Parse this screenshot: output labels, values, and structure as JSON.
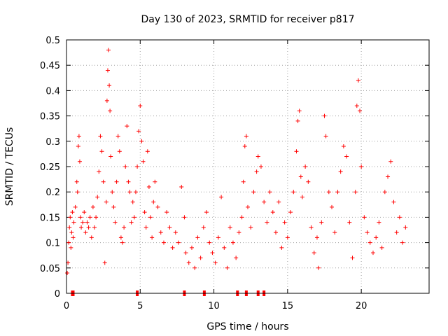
{
  "chart_data": {
    "type": "scatter",
    "title": "Day 130 of 2023, SRMTID for receiver p817",
    "xlabel": "GPS time / hours",
    "ylabel": "SRMTID / TECUs",
    "xlim": [
      0,
      24.6
    ],
    "ylim": [
      0,
      0.5
    ],
    "x_ticks": [
      0,
      5,
      10,
      15,
      20
    ],
    "x_tick_labels": [
      "0",
      "5",
      "10",
      "15",
      "20"
    ],
    "y_ticks": [
      0,
      0.05,
      0.1,
      0.15,
      0.2,
      0.25,
      0.3,
      0.35,
      0.4,
      0.45,
      0.5
    ],
    "y_tick_labels": [
      "0",
      "0.05",
      "0.1",
      "0.15",
      "0.2",
      "0.25",
      "0.3",
      "0.35",
      "0.4",
      "0.45",
      "0.5"
    ],
    "grid": true,
    "marker": "+",
    "color": "#ff0000",
    "series": [
      {
        "name": "SRMTID",
        "points": [
          [
            0.05,
            0.04
          ],
          [
            0.1,
            0.06
          ],
          [
            0.15,
            0.1
          ],
          [
            0.2,
            0.13
          ],
          [
            0.25,
            0.15
          ],
          [
            0.3,
            0.09
          ],
          [
            0.35,
            0.12
          ],
          [
            0.4,
            0.16
          ],
          [
            0.45,
            0.11
          ],
          [
            0.5,
            0.14
          ],
          [
            0.6,
            0.17
          ],
          [
            0.7,
            0.22
          ],
          [
            0.75,
            0.2
          ],
          [
            0.8,
            0.29
          ],
          [
            0.85,
            0.31
          ],
          [
            0.9,
            0.26
          ],
          [
            0.95,
            0.15
          ],
          [
            1.0,
            0.13
          ],
          [
            1.1,
            0.14
          ],
          [
            1.2,
            0.16
          ],
          [
            1.3,
            0.12
          ],
          [
            1.4,
            0.14
          ],
          [
            1.5,
            0.13
          ],
          [
            1.6,
            0.15
          ],
          [
            1.7,
            0.11
          ],
          [
            1.8,
            0.17
          ],
          [
            1.9,
            0.13
          ],
          [
            2.0,
            0.15
          ],
          [
            2.1,
            0.19
          ],
          [
            2.2,
            0.24
          ],
          [
            2.3,
            0.31
          ],
          [
            2.4,
            0.28
          ],
          [
            2.5,
            0.22
          ],
          [
            2.6,
            0.06
          ],
          [
            2.7,
            0.18
          ],
          [
            2.75,
            0.38
          ],
          [
            2.8,
            0.44
          ],
          [
            2.85,
            0.48
          ],
          [
            2.9,
            0.41
          ],
          [
            2.95,
            0.36
          ],
          [
            3.0,
            0.27
          ],
          [
            3.1,
            0.2
          ],
          [
            3.2,
            0.17
          ],
          [
            3.3,
            0.14
          ],
          [
            3.4,
            0.22
          ],
          [
            3.5,
            0.31
          ],
          [
            3.6,
            0.28
          ],
          [
            3.7,
            0.11
          ],
          [
            3.8,
            0.1
          ],
          [
            3.9,
            0.13
          ],
          [
            4.0,
            0.25
          ],
          [
            4.1,
            0.33
          ],
          [
            4.2,
            0.22
          ],
          [
            4.3,
            0.2
          ],
          [
            4.4,
            0.14
          ],
          [
            4.5,
            0.18
          ],
          [
            4.6,
            0.15
          ],
          [
            4.7,
            0.2
          ],
          [
            4.8,
            0.25
          ],
          [
            4.9,
            0.32
          ],
          [
            5.0,
            0.37
          ],
          [
            5.1,
            0.3
          ],
          [
            5.2,
            0.26
          ],
          [
            5.3,
            0.16
          ],
          [
            5.4,
            0.13
          ],
          [
            5.5,
            0.28
          ],
          [
            5.6,
            0.21
          ],
          [
            5.7,
            0.15
          ],
          [
            5.8,
            0.11
          ],
          [
            5.9,
            0.18
          ],
          [
            6.0,
            0.22
          ],
          [
            6.2,
            0.17
          ],
          [
            6.4,
            0.12
          ],
          [
            6.6,
            0.1
          ],
          [
            6.8,
            0.16
          ],
          [
            7.0,
            0.13
          ],
          [
            7.2,
            0.09
          ],
          [
            7.4,
            0.12
          ],
          [
            7.6,
            0.1
          ],
          [
            7.8,
            0.21
          ],
          [
            8.0,
            0.15
          ],
          [
            8.1,
            0.08
          ],
          [
            8.3,
            0.06
          ],
          [
            8.5,
            0.09
          ],
          [
            8.7,
            0.05
          ],
          [
            8.9,
            0.11
          ],
          [
            9.1,
            0.07
          ],
          [
            9.3,
            0.13
          ],
          [
            9.5,
            0.16
          ],
          [
            9.7,
            0.1
          ],
          [
            9.9,
            0.08
          ],
          [
            10.1,
            0.06
          ],
          [
            10.3,
            0.11
          ],
          [
            10.5,
            0.19
          ],
          [
            10.7,
            0.09
          ],
          [
            10.9,
            0.05
          ],
          [
            11.1,
            0.13
          ],
          [
            11.3,
            0.1
          ],
          [
            11.5,
            0.07
          ],
          [
            11.7,
            0.12
          ],
          [
            11.9,
            0.15
          ],
          [
            12.0,
            0.22
          ],
          [
            12.1,
            0.29
          ],
          [
            12.2,
            0.31
          ],
          [
            12.3,
            0.17
          ],
          [
            12.5,
            0.13
          ],
          [
            12.7,
            0.2
          ],
          [
            12.9,
            0.24
          ],
          [
            13.0,
            0.27
          ],
          [
            13.2,
            0.25
          ],
          [
            13.4,
            0.18
          ],
          [
            13.6,
            0.14
          ],
          [
            13.8,
            0.2
          ],
          [
            14.0,
            0.16
          ],
          [
            14.2,
            0.12
          ],
          [
            14.4,
            0.18
          ],
          [
            14.6,
            0.09
          ],
          [
            14.8,
            0.14
          ],
          [
            15.0,
            0.11
          ],
          [
            15.2,
            0.16
          ],
          [
            15.4,
            0.2
          ],
          [
            15.6,
            0.28
          ],
          [
            15.7,
            0.34
          ],
          [
            15.8,
            0.36
          ],
          [
            15.9,
            0.23
          ],
          [
            16.0,
            0.19
          ],
          [
            16.2,
            0.25
          ],
          [
            16.4,
            0.22
          ],
          [
            16.6,
            0.13
          ],
          [
            16.8,
            0.08
          ],
          [
            17.0,
            0.11
          ],
          [
            17.1,
            0.05
          ],
          [
            17.3,
            0.14
          ],
          [
            17.5,
            0.35
          ],
          [
            17.6,
            0.31
          ],
          [
            17.8,
            0.2
          ],
          [
            18.0,
            0.17
          ],
          [
            18.2,
            0.12
          ],
          [
            18.4,
            0.2
          ],
          [
            18.6,
            0.24
          ],
          [
            18.8,
            0.29
          ],
          [
            19.0,
            0.27
          ],
          [
            19.2,
            0.14
          ],
          [
            19.4,
            0.07
          ],
          [
            19.6,
            0.2
          ],
          [
            19.7,
            0.37
          ],
          [
            19.8,
            0.42
          ],
          [
            19.9,
            0.36
          ],
          [
            20.0,
            0.25
          ],
          [
            20.2,
            0.15
          ],
          [
            20.4,
            0.12
          ],
          [
            20.6,
            0.1
          ],
          [
            20.8,
            0.08
          ],
          [
            21.0,
            0.11
          ],
          [
            21.2,
            0.14
          ],
          [
            21.4,
            0.09
          ],
          [
            21.6,
            0.2
          ],
          [
            21.8,
            0.23
          ],
          [
            22.0,
            0.26
          ],
          [
            22.2,
            0.18
          ],
          [
            22.4,
            0.12
          ],
          [
            22.6,
            0.15
          ],
          [
            22.8,
            0.1
          ],
          [
            23.0,
            0.13
          ]
        ]
      },
      {
        "name": "Zero values",
        "points": [
          [
            0.4,
            0
          ],
          [
            0.45,
            0
          ],
          [
            4.8,
            0
          ],
          [
            8.0,
            0
          ],
          [
            9.35,
            0
          ],
          [
            11.6,
            0
          ],
          [
            12.2,
            0
          ],
          [
            13.0,
            0
          ],
          [
            13.4,
            0
          ]
        ]
      }
    ]
  }
}
